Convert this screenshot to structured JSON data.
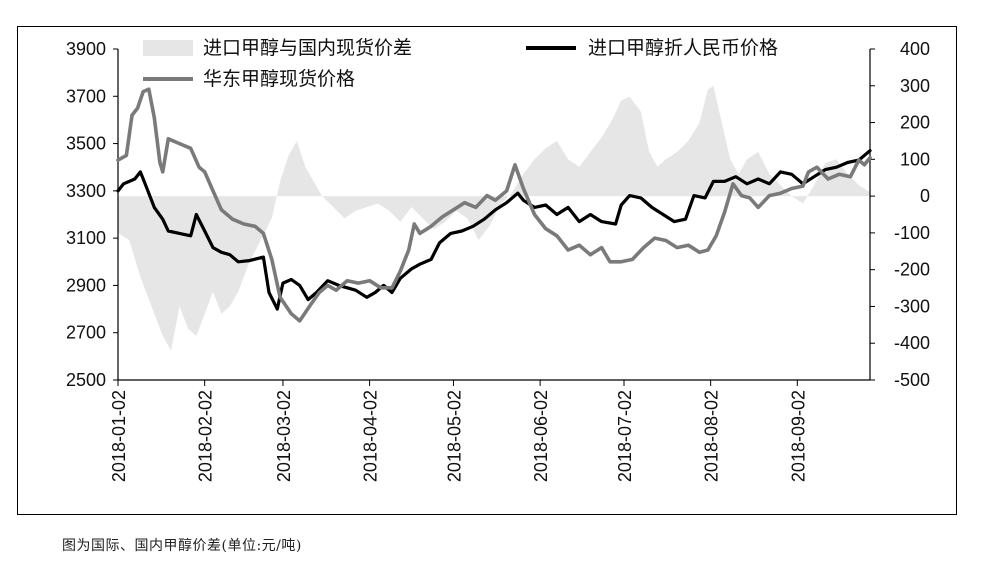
{
  "caption": "图为国际、国内甲醇价差(单位:元/吨)",
  "chart_data": {
    "type": "line",
    "title": "",
    "xlabel": "",
    "ylabel": "",
    "ylim_left": [
      2500,
      3900
    ],
    "ylim_right": [
      -500,
      400
    ],
    "left_ticks": [
      2500,
      2700,
      2900,
      3100,
      3300,
      3500,
      3700,
      3900
    ],
    "right_ticks": [
      -500,
      -400,
      -300,
      -200,
      -100,
      0,
      100,
      200,
      300,
      400
    ],
    "x_tick_labels": [
      "2018-01-02",
      "2018-02-02",
      "2018-03-02",
      "2018-04-02",
      "2018-05-02",
      "2018-06-02",
      "2018-07-02",
      "2018-08-02",
      "2018-09-02"
    ],
    "x_tick_dates": [
      "2018-01-02",
      "2018-02-02",
      "2018-03-02",
      "2018-04-02",
      "2018-05-02",
      "2018-06-02",
      "2018-07-02",
      "2018-08-02",
      "2018-09-02"
    ],
    "x_range": [
      "2018-01-02",
      "2018-09-28"
    ],
    "grid": false,
    "legend_position": "top",
    "series": [
      {
        "name": "进口甲醇与国内现货价差",
        "kind": "area",
        "axis": "right",
        "color": "#e6e6e6",
        "points": [
          [
            "2018-01-02",
            -100
          ],
          [
            "2018-01-06",
            -120
          ],
          [
            "2018-01-10",
            -220
          ],
          [
            "2018-01-14",
            -300
          ],
          [
            "2018-01-18",
            -380
          ],
          [
            "2018-01-21",
            -420
          ],
          [
            "2018-01-24",
            -300
          ],
          [
            "2018-01-27",
            -360
          ],
          [
            "2018-01-30",
            -380
          ],
          [
            "2018-02-02",
            -320
          ],
          [
            "2018-02-05",
            -260
          ],
          [
            "2018-02-08",
            -320
          ],
          [
            "2018-02-11",
            -300
          ],
          [
            "2018-02-14",
            -260
          ],
          [
            "2018-02-18",
            -180
          ],
          [
            "2018-02-22",
            -120
          ],
          [
            "2018-02-26",
            -60
          ],
          [
            "2018-03-01",
            40
          ],
          [
            "2018-03-04",
            110
          ],
          [
            "2018-03-07",
            150
          ],
          [
            "2018-03-10",
            80
          ],
          [
            "2018-03-13",
            40
          ],
          [
            "2018-03-16",
            0
          ],
          [
            "2018-03-20",
            -30
          ],
          [
            "2018-03-24",
            -60
          ],
          [
            "2018-03-28",
            -40
          ],
          [
            "2018-04-01",
            -30
          ],
          [
            "2018-04-05",
            -20
          ],
          [
            "2018-04-09",
            -40
          ],
          [
            "2018-04-13",
            -70
          ],
          [
            "2018-04-17",
            -30
          ],
          [
            "2018-04-21",
            -60
          ],
          [
            "2018-04-25",
            -90
          ],
          [
            "2018-04-29",
            -70
          ],
          [
            "2018-05-03",
            -40
          ],
          [
            "2018-05-07",
            -60
          ],
          [
            "2018-05-11",
            -120
          ],
          [
            "2018-05-15",
            -80
          ],
          [
            "2018-05-19",
            -20
          ],
          [
            "2018-05-23",
            10
          ],
          [
            "2018-05-27",
            60
          ],
          [
            "2018-05-31",
            100
          ],
          [
            "2018-06-04",
            130
          ],
          [
            "2018-06-08",
            150
          ],
          [
            "2018-06-12",
            100
          ],
          [
            "2018-06-16",
            80
          ],
          [
            "2018-06-20",
            120
          ],
          [
            "2018-06-24",
            160
          ],
          [
            "2018-06-28",
            210
          ],
          [
            "2018-07-01",
            260
          ],
          [
            "2018-07-04",
            270
          ],
          [
            "2018-07-08",
            230
          ],
          [
            "2018-07-11",
            120
          ],
          [
            "2018-07-14",
            80
          ],
          [
            "2018-07-17",
            100
          ],
          [
            "2018-07-21",
            120
          ],
          [
            "2018-07-25",
            150
          ],
          [
            "2018-07-29",
            200
          ],
          [
            "2018-08-01",
            290
          ],
          [
            "2018-08-03",
            300
          ],
          [
            "2018-08-06",
            200
          ],
          [
            "2018-08-09",
            100
          ],
          [
            "2018-08-12",
            60
          ],
          [
            "2018-08-15",
            100
          ],
          [
            "2018-08-19",
            120
          ],
          [
            "2018-08-23",
            60
          ],
          [
            "2018-08-27",
            30
          ],
          [
            "2018-08-31",
            0
          ],
          [
            "2018-09-04",
            -20
          ],
          [
            "2018-09-08",
            30
          ],
          [
            "2018-09-12",
            90
          ],
          [
            "2018-09-16",
            100
          ],
          [
            "2018-09-20",
            60
          ],
          [
            "2018-09-24",
            30
          ],
          [
            "2018-09-28",
            10
          ]
        ]
      },
      {
        "name": "进口甲醇折人民币价格",
        "kind": "line",
        "axis": "left",
        "color": "#000000",
        "points": [
          [
            "2018-01-02",
            3300
          ],
          [
            "2018-01-04",
            3330
          ],
          [
            "2018-01-08",
            3350
          ],
          [
            "2018-01-10",
            3380
          ],
          [
            "2018-01-12",
            3320
          ],
          [
            "2018-01-15",
            3230
          ],
          [
            "2018-01-18",
            3180
          ],
          [
            "2018-01-20",
            3130
          ],
          [
            "2018-01-24",
            3120
          ],
          [
            "2018-01-28",
            3110
          ],
          [
            "2018-01-30",
            3200
          ],
          [
            "2018-02-02",
            3130
          ],
          [
            "2018-02-05",
            3060
          ],
          [
            "2018-02-08",
            3040
          ],
          [
            "2018-02-11",
            3030
          ],
          [
            "2018-02-14",
            3000
          ],
          [
            "2018-02-18",
            3005
          ],
          [
            "2018-02-23",
            3020
          ],
          [
            "2018-02-25",
            2870
          ],
          [
            "2018-02-28",
            2800
          ],
          [
            "2018-03-02",
            2910
          ],
          [
            "2018-03-05",
            2925
          ],
          [
            "2018-03-08",
            2900
          ],
          [
            "2018-03-11",
            2840
          ],
          [
            "2018-03-14",
            2870
          ],
          [
            "2018-03-18",
            2920
          ],
          [
            "2018-03-22",
            2900
          ],
          [
            "2018-03-25",
            2890
          ],
          [
            "2018-03-28",
            2880
          ],
          [
            "2018-04-01",
            2850
          ],
          [
            "2018-04-04",
            2870
          ],
          [
            "2018-04-07",
            2900
          ],
          [
            "2018-04-10",
            2870
          ],
          [
            "2018-04-13",
            2930
          ],
          [
            "2018-04-17",
            2970
          ],
          [
            "2018-04-20",
            2990
          ],
          [
            "2018-04-24",
            3010
          ],
          [
            "2018-04-27",
            3080
          ],
          [
            "2018-05-01",
            3120
          ],
          [
            "2018-05-05",
            3130
          ],
          [
            "2018-05-09",
            3150
          ],
          [
            "2018-05-13",
            3180
          ],
          [
            "2018-05-17",
            3220
          ],
          [
            "2018-05-21",
            3250
          ],
          [
            "2018-05-25",
            3290
          ],
          [
            "2018-05-27",
            3260
          ],
          [
            "2018-05-31",
            3230
          ],
          [
            "2018-06-04",
            3240
          ],
          [
            "2018-06-08",
            3200
          ],
          [
            "2018-06-12",
            3230
          ],
          [
            "2018-06-16",
            3170
          ],
          [
            "2018-06-20",
            3200
          ],
          [
            "2018-06-24",
            3170
          ],
          [
            "2018-06-29",
            3160
          ],
          [
            "2018-07-01",
            3240
          ],
          [
            "2018-07-04",
            3280
          ],
          [
            "2018-07-08",
            3270
          ],
          [
            "2018-07-12",
            3230
          ],
          [
            "2018-07-16",
            3200
          ],
          [
            "2018-07-20",
            3170
          ],
          [
            "2018-07-24",
            3180
          ],
          [
            "2018-07-27",
            3280
          ],
          [
            "2018-07-31",
            3270
          ],
          [
            "2018-08-03",
            3340
          ],
          [
            "2018-08-07",
            3340
          ],
          [
            "2018-08-11",
            3360
          ],
          [
            "2018-08-15",
            3330
          ],
          [
            "2018-08-19",
            3350
          ],
          [
            "2018-08-23",
            3330
          ],
          [
            "2018-08-27",
            3380
          ],
          [
            "2018-08-31",
            3370
          ],
          [
            "2018-09-04",
            3330
          ],
          [
            "2018-09-08",
            3360
          ],
          [
            "2018-09-12",
            3390
          ],
          [
            "2018-09-16",
            3400
          ],
          [
            "2018-09-20",
            3420
          ],
          [
            "2018-09-24",
            3430
          ],
          [
            "2018-09-28",
            3470
          ]
        ]
      },
      {
        "name": "华东甲醇现货价格",
        "kind": "line",
        "axis": "left",
        "color": "#7a7a7a",
        "points": [
          [
            "2018-01-02",
            3430
          ],
          [
            "2018-01-05",
            3450
          ],
          [
            "2018-01-07",
            3620
          ],
          [
            "2018-01-09",
            3650
          ],
          [
            "2018-01-11",
            3720
          ],
          [
            "2018-01-13",
            3730
          ],
          [
            "2018-01-15",
            3610
          ],
          [
            "2018-01-17",
            3420
          ],
          [
            "2018-01-18",
            3380
          ],
          [
            "2018-01-20",
            3520
          ],
          [
            "2018-01-24",
            3500
          ],
          [
            "2018-01-28",
            3480
          ],
          [
            "2018-01-31",
            3400
          ],
          [
            "2018-02-02",
            3380
          ],
          [
            "2018-02-05",
            3300
          ],
          [
            "2018-02-08",
            3220
          ],
          [
            "2018-02-12",
            3180
          ],
          [
            "2018-02-16",
            3160
          ],
          [
            "2018-02-20",
            3150
          ],
          [
            "2018-02-23",
            3120
          ],
          [
            "2018-02-26",
            3010
          ],
          [
            "2018-03-01",
            2850
          ],
          [
            "2018-03-05",
            2780
          ],
          [
            "2018-03-08",
            2750
          ],
          [
            "2018-03-12",
            2820
          ],
          [
            "2018-03-15",
            2870
          ],
          [
            "2018-03-18",
            2900
          ],
          [
            "2018-03-21",
            2880
          ],
          [
            "2018-03-25",
            2920
          ],
          [
            "2018-03-29",
            2910
          ],
          [
            "2018-04-02",
            2920
          ],
          [
            "2018-04-06",
            2890
          ],
          [
            "2018-04-10",
            2890
          ],
          [
            "2018-04-13",
            2960
          ],
          [
            "2018-04-16",
            3050
          ],
          [
            "2018-04-18",
            3160
          ],
          [
            "2018-04-20",
            3120
          ],
          [
            "2018-04-24",
            3150
          ],
          [
            "2018-04-28",
            3190
          ],
          [
            "2018-05-02",
            3220
          ],
          [
            "2018-05-06",
            3250
          ],
          [
            "2018-05-10",
            3230
          ],
          [
            "2018-05-14",
            3280
          ],
          [
            "2018-05-17",
            3260
          ],
          [
            "2018-05-21",
            3300
          ],
          [
            "2018-05-24",
            3410
          ],
          [
            "2018-05-27",
            3310
          ],
          [
            "2018-05-31",
            3200
          ],
          [
            "2018-06-04",
            3140
          ],
          [
            "2018-06-08",
            3110
          ],
          [
            "2018-06-12",
            3050
          ],
          [
            "2018-06-16",
            3070
          ],
          [
            "2018-06-20",
            3030
          ],
          [
            "2018-06-24",
            3060
          ],
          [
            "2018-06-27",
            3000
          ],
          [
            "2018-07-01",
            3000
          ],
          [
            "2018-07-05",
            3010
          ],
          [
            "2018-07-09",
            3060
          ],
          [
            "2018-07-13",
            3100
          ],
          [
            "2018-07-17",
            3090
          ],
          [
            "2018-07-21",
            3060
          ],
          [
            "2018-07-25",
            3070
          ],
          [
            "2018-07-29",
            3040
          ],
          [
            "2018-08-01",
            3050
          ],
          [
            "2018-08-04",
            3110
          ],
          [
            "2018-08-07",
            3210
          ],
          [
            "2018-08-10",
            3330
          ],
          [
            "2018-08-13",
            3280
          ],
          [
            "2018-08-16",
            3270
          ],
          [
            "2018-08-19",
            3230
          ],
          [
            "2018-08-23",
            3280
          ],
          [
            "2018-08-27",
            3290
          ],
          [
            "2018-08-31",
            3310
          ],
          [
            "2018-09-04",
            3320
          ],
          [
            "2018-09-06",
            3380
          ],
          [
            "2018-09-09",
            3400
          ],
          [
            "2018-09-13",
            3350
          ],
          [
            "2018-09-17",
            3370
          ],
          [
            "2018-09-21",
            3360
          ],
          [
            "2018-09-24",
            3430
          ],
          [
            "2018-09-26",
            3410
          ],
          [
            "2018-09-28",
            3440
          ]
        ]
      }
    ]
  }
}
